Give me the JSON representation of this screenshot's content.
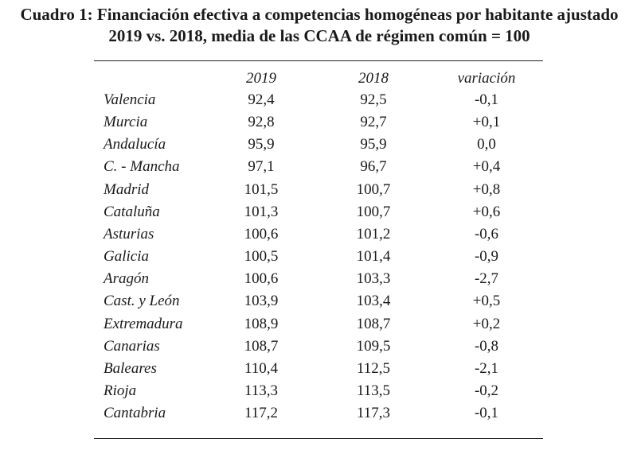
{
  "title": {
    "line1": "Cuadro 1: Financiación efectiva a competencias homogéneas por habitante ajustado",
    "line2": "2019 vs. 2018, media de las CCAA de régimen común = 100"
  },
  "table": {
    "headers": {
      "y2019": "2019",
      "y2018": "2018",
      "variation": "variación"
    },
    "rows": [
      {
        "region": "Valencia",
        "y2019": "92,4",
        "y2018": "92,5",
        "variation": "-0,1"
      },
      {
        "region": "Murcia",
        "y2019": "92,8",
        "y2018": "92,7",
        "variation": "+0,1"
      },
      {
        "region": "Andalucía",
        "y2019": "95,9",
        "y2018": "95,9",
        "variation": "0,0"
      },
      {
        "region": "C. - Mancha",
        "y2019": "97,1",
        "y2018": "96,7",
        "variation": "+0,4"
      },
      {
        "region": "Madrid",
        "y2019": "101,5",
        "y2018": "100,7",
        "variation": "+0,8"
      },
      {
        "region": "Cataluña",
        "y2019": "101,3",
        "y2018": "100,7",
        "variation": "+0,6"
      },
      {
        "region": "Asturias",
        "y2019": "100,6",
        "y2018": "101,2",
        "variation": "-0,6"
      },
      {
        "region": "Galicia",
        "y2019": "100,5",
        "y2018": "101,4",
        "variation": "-0,9"
      },
      {
        "region": "Aragón",
        "y2019": "100,6",
        "y2018": "103,3",
        "variation": "-2,7"
      },
      {
        "region": "Cast. y León",
        "y2019": "103,9",
        "y2018": "103,4",
        "variation": "+0,5"
      },
      {
        "region": "Extremadura",
        "y2019": "108,9",
        "y2018": "108,7",
        "variation": "+0,2"
      },
      {
        "region": "Canarias",
        "y2019": "108,7",
        "y2018": "109,5",
        "variation": "-0,8"
      },
      {
        "region": "Baleares",
        "y2019": "110,4",
        "y2018": "112,5",
        "variation": "-2,1"
      },
      {
        "region": "Rioja",
        "y2019": "113,3",
        "y2018": "113,5",
        "variation": "-0,2"
      },
      {
        "region": "Cantabria",
        "y2019": "117,2",
        "y2018": "117,3",
        "variation": "-0,1"
      }
    ]
  }
}
